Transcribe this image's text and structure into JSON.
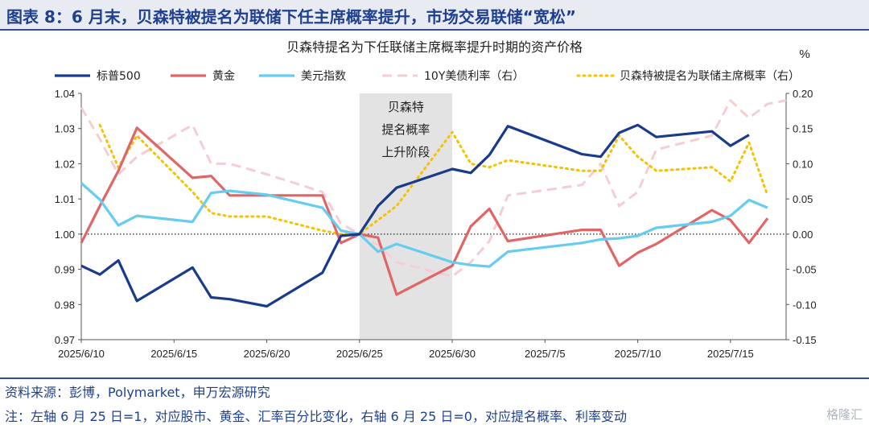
{
  "header": {
    "title": "图表 8：6 月末，贝森特被提名为联储下任主席概率提升，市场交易联储“宽松”"
  },
  "footer": {
    "source": "资料来源：彭博，Polymarket，申万宏源研究",
    "note": "注：左轴 6 月 25 日=1，对应股市、黄金、汇率百分比变化，右轴 6 月 25 日=0，对应提名概率、利率变动",
    "watermark": "格隆汇"
  },
  "chart_data": {
    "type": "line",
    "title": "贝森特提名为下任联储主席概率提升时期的资产价格",
    "right_axis_unit": "%",
    "ylim": [
      0.97,
      1.04
    ],
    "y_ticks": [
      "1.04",
      "1.03",
      "1.02",
      "1.01",
      "1.00",
      "0.99",
      "0.98",
      "0.97"
    ],
    "y2lim": [
      -0.15,
      0.2
    ],
    "y2_ticks": [
      "0.20",
      "0.15",
      "0.10",
      "0.05",
      "0.00",
      "-0.05",
      "-0.10",
      "-0.15"
    ],
    "xlim": [
      "2025-06-10",
      "2025-07-18"
    ],
    "x_ticks": [
      "2025/6/10",
      "2025/6/15",
      "2025/6/20",
      "2025/6/25",
      "2025/6/30",
      "2025/7/5",
      "2025/7/10",
      "2025/7/15"
    ],
    "x_tick_dates": [
      "2025-06-10",
      "2025-06-15",
      "2025-06-20",
      "2025-06-25",
      "2025-06-30",
      "2025-07-05",
      "2025-07-10",
      "2025-07-15"
    ],
    "shaded_region": {
      "start": "2025-06-25",
      "end": "2025-06-30",
      "label": [
        "贝森特",
        "提名概率",
        "上升阶段"
      ]
    },
    "reference_line": 1.0,
    "colors": {
      "sp500": "#1a3a8c",
      "gold": "#e06666",
      "dxy": "#66ccf0",
      "us10y": "#f6cdd2",
      "prob": "#f5c200",
      "shade": "#e3e3e3"
    },
    "series": [
      {
        "name": "标普500",
        "axis": "left",
        "style": "solid",
        "color": "#1a3a8c",
        "x": [
          "2025-06-10",
          "2025-06-11",
          "2025-06-12",
          "2025-06-13",
          "2025-06-16",
          "2025-06-17",
          "2025-06-18",
          "2025-06-20",
          "2025-06-23",
          "2025-06-24",
          "2025-06-25",
          "2025-06-26",
          "2025-06-27",
          "2025-06-30",
          "2025-07-01",
          "2025-07-02",
          "2025-07-03",
          "2025-07-07",
          "2025-07-08",
          "2025-07-09",
          "2025-07-10",
          "2025-07-11",
          "2025-07-14",
          "2025-07-15",
          "2025-07-16"
        ],
        "values": [
          0.991,
          0.9885,
          0.9925,
          0.981,
          0.9905,
          0.982,
          0.9815,
          0.9795,
          0.989,
          0.9995,
          1.0,
          1.008,
          1.0132,
          1.0185,
          1.0174,
          1.0225,
          1.0307,
          1.0227,
          1.022,
          1.0288,
          1.031,
          1.0276,
          1.0292,
          1.0251,
          1.0282
        ]
      },
      {
        "name": "黄金",
        "axis": "left",
        "style": "solid",
        "color": "#e06666",
        "x": [
          "2025-06-10",
          "2025-06-11",
          "2025-06-12",
          "2025-06-13",
          "2025-06-16",
          "2025-06-17",
          "2025-06-18",
          "2025-06-20",
          "2025-06-23",
          "2025-06-24",
          "2025-06-25",
          "2025-06-26",
          "2025-06-27",
          "2025-06-30",
          "2025-07-01",
          "2025-07-02",
          "2025-07-03",
          "2025-07-07",
          "2025-07-08",
          "2025-07-09",
          "2025-07-10",
          "2025-07-11",
          "2025-07-14",
          "2025-07-15",
          "2025-07-16",
          "2025-07-17"
        ],
        "values": [
          0.9975,
          1.008,
          1.018,
          1.0302,
          1.016,
          1.0165,
          1.011,
          1.011,
          1.011,
          0.9975,
          1.0,
          0.999,
          0.9828,
          0.991,
          1.0022,
          1.0072,
          0.998,
          1.0012,
          1.0012,
          0.991,
          0.9947,
          0.9972,
          1.0068,
          1.004,
          0.9975,
          1.0045
        ]
      },
      {
        "name": "美元指数",
        "axis": "left",
        "style": "solid",
        "color": "#66ccf0",
        "x": [
          "2025-06-10",
          "2025-06-11",
          "2025-06-12",
          "2025-06-13",
          "2025-06-16",
          "2025-06-17",
          "2025-06-18",
          "2025-06-20",
          "2025-06-23",
          "2025-06-24",
          "2025-06-25",
          "2025-06-26",
          "2025-06-27",
          "2025-06-30",
          "2025-07-01",
          "2025-07-02",
          "2025-07-03",
          "2025-07-07",
          "2025-07-08",
          "2025-07-09",
          "2025-07-10",
          "2025-07-11",
          "2025-07-14",
          "2025-07-15",
          "2025-07-16",
          "2025-07-17"
        ],
        "values": [
          1.0145,
          1.0098,
          1.0025,
          1.0052,
          1.0035,
          1.0117,
          1.0123,
          1.0112,
          1.0075,
          1.001,
          1.0,
          0.995,
          0.9972,
          0.992,
          0.9912,
          0.9908,
          0.995,
          0.9975,
          0.9985,
          0.9988,
          0.9995,
          1.0018,
          1.0035,
          1.0052,
          1.0097,
          1.0075
        ]
      },
      {
        "name": "10Y美债利率（右）",
        "axis": "right",
        "style": "dashed",
        "color": "#f6cdd2",
        "x": [
          "2025-06-10",
          "2025-06-11",
          "2025-06-12",
          "2025-06-13",
          "2025-06-16",
          "2025-06-17",
          "2025-06-18",
          "2025-06-20",
          "2025-06-23",
          "2025-06-24",
          "2025-06-25",
          "2025-06-26",
          "2025-06-27",
          "2025-06-30",
          "2025-07-01",
          "2025-07-02",
          "2025-07-03",
          "2025-07-07",
          "2025-07-08",
          "2025-07-09",
          "2025-07-10",
          "2025-07-11",
          "2025-07-14",
          "2025-07-15",
          "2025-07-16",
          "2025-07-17",
          "2025-07-18"
        ],
        "values": [
          0.18,
          0.135,
          0.085,
          0.11,
          0.155,
          0.1,
          0.1,
          0.085,
          0.06,
          0.015,
          0.0,
          -0.015,
          -0.04,
          -0.06,
          -0.04,
          -0.01,
          0.055,
          0.07,
          0.1,
          0.04,
          0.06,
          0.12,
          0.14,
          0.19,
          0.165,
          0.185,
          0.19
        ]
      },
      {
        "name": "贝森特被提名为联储主席概率（右）",
        "axis": "right",
        "style": "dotted",
        "color": "#f5c200",
        "x": [
          "2025-06-10",
          "2025-06-11",
          "2025-06-12",
          "2025-06-13",
          "2025-06-16",
          "2025-06-17",
          "2025-06-18",
          "2025-06-20",
          "2025-06-23",
          "2025-06-24",
          "2025-06-25",
          "2025-06-26",
          "2025-06-27",
          "2025-06-30",
          "2025-07-01",
          "2025-07-02",
          "2025-07-03",
          "2025-07-07",
          "2025-07-08",
          "2025-07-09",
          "2025-07-10",
          "2025-07-11",
          "2025-07-14",
          "2025-07-15",
          "2025-07-16",
          "2025-07-17"
        ],
        "values": [
          null,
          0.155,
          0.095,
          0.14,
          0.06,
          0.03,
          0.025,
          0.025,
          0.005,
          0.0,
          0.0,
          0.02,
          0.04,
          0.145,
          0.1,
          0.095,
          0.105,
          0.09,
          0.09,
          0.14,
          0.11,
          0.09,
          0.095,
          0.075,
          0.13,
          0.055
        ]
      }
    ]
  }
}
